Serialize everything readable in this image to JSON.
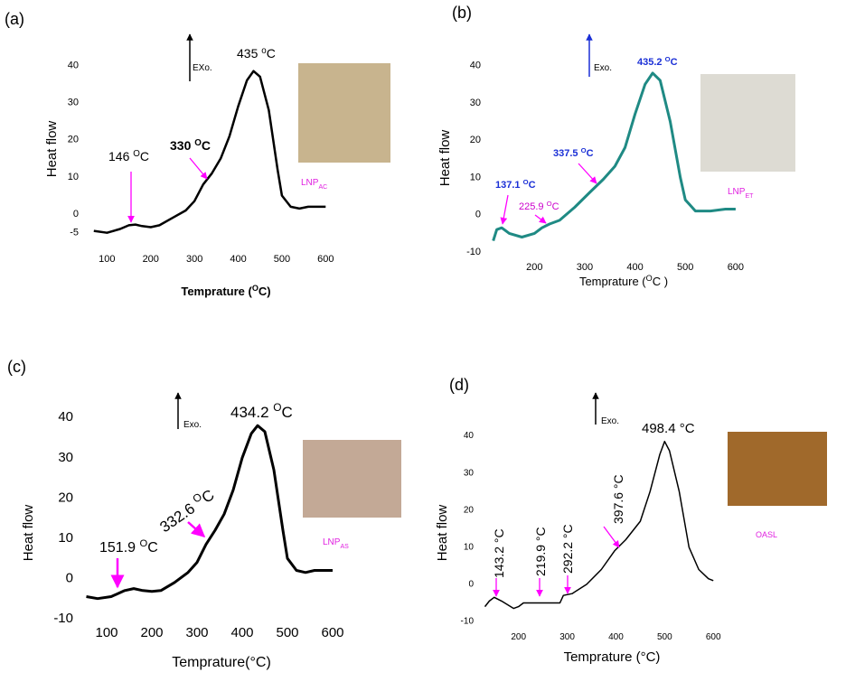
{
  "chart_data": [
    {
      "type": "line",
      "panel_label": "(a)",
      "y_label": "Heat flow",
      "x_label": {
        "text": "Temprature (",
        "sup": "O",
        "after": "C)"
      },
      "sample_label": {
        "text": "LNP",
        "sub": "AC"
      },
      "exo_label": "EXo.",
      "annotations": [
        {
          "text": "146 ",
          "sup": "O",
          "after": "C"
        },
        {
          "text": "330 ",
          "sup": "O",
          "after": "C"
        },
        {
          "text": "435 ",
          "sup": "o",
          "after": "C"
        }
      ],
      "color": "#000000",
      "x": [
        70,
        100,
        130,
        150,
        165,
        180,
        200,
        220,
        250,
        280,
        300,
        320,
        340,
        360,
        380,
        400,
        420,
        435,
        450,
        470,
        490,
        500,
        520,
        540,
        560,
        600
      ],
      "values": [
        -4.5,
        -5,
        -4,
        -3,
        -2.8,
        -3.2,
        -3.5,
        -3,
        -1,
        1,
        3.5,
        8,
        11,
        15,
        21,
        29,
        36,
        38.5,
        37,
        28,
        12,
        5,
        2,
        1.5,
        2,
        2
      ],
      "xlim": [
        60,
        620
      ],
      "ylim": [
        -8,
        45
      ],
      "xticks": [
        100,
        200,
        300,
        400,
        500,
        600
      ],
      "yticks": [
        -5,
        0,
        10,
        20,
        30,
        40
      ]
    },
    {
      "type": "line",
      "panel_label": "(b)",
      "y_label": "Heat flow",
      "x_label": {
        "text": "Temprature (",
        "sup": "O",
        "after": "C )"
      },
      "sample_label": {
        "text": "LNP",
        "sub": "ET"
      },
      "exo_label": "Exo.",
      "annotations": [
        {
          "text": "137.1 ",
          "sup": "O",
          "after": "C"
        },
        {
          "text": "225.9 ",
          "sup": "O",
          "after": "C"
        },
        {
          "text": "337.5 ",
          "sup": "O",
          "after": "C"
        },
        {
          "text": "435.2 ",
          "sup": "O",
          "after": "C"
        }
      ],
      "color": "#1f8a84",
      "x": [
        118,
        125,
        135,
        150,
        175,
        200,
        215,
        230,
        250,
        280,
        310,
        337,
        360,
        380,
        400,
        420,
        435,
        450,
        470,
        490,
        500,
        520,
        550,
        580,
        600
      ],
      "values": [
        -7,
        -4,
        -3.5,
        -5,
        -6,
        -5,
        -3.5,
        -2.5,
        -1.5,
        2,
        6,
        9.5,
        13,
        18,
        27,
        35,
        38,
        36,
        25,
        10,
        4,
        1,
        1,
        1.5,
        1.5
      ],
      "xlim": [
        115,
        620
      ],
      "ylim": [
        -10,
        45
      ],
      "xticks": [
        200,
        300,
        400,
        500,
        600
      ],
      "yticks": [
        -10,
        0,
        10,
        20,
        30,
        40
      ]
    },
    {
      "type": "line",
      "panel_label": "(c)",
      "y_label": "Heat flow",
      "x_label": {
        "text": "Temprature(°C)"
      },
      "sample_label": {
        "text": "LNP",
        "sub": "AS"
      },
      "exo_label": "Exo.",
      "annotations": [
        {
          "text": "151.9 ",
          "sup": "O",
          "after": "C"
        },
        {
          "text": "332.6 ",
          "sup": "O",
          "after": "C"
        },
        {
          "text": "434.2 ",
          "sup": "O",
          "after": "C"
        }
      ],
      "color": "#000000",
      "x": [
        55,
        80,
        110,
        140,
        160,
        180,
        200,
        220,
        250,
        280,
        300,
        320,
        340,
        360,
        380,
        400,
        420,
        434,
        450,
        470,
        490,
        500,
        520,
        540,
        560,
        600
      ],
      "values": [
        -4.5,
        -5,
        -4.5,
        -3,
        -2.5,
        -3,
        -3.2,
        -3,
        -1,
        1.5,
        4,
        8.5,
        12,
        16,
        22,
        30,
        36,
        38,
        36.5,
        27,
        12,
        5,
        2,
        1.5,
        2,
        2
      ],
      "xlim": [
        50,
        620
      ],
      "ylim": [
        -10,
        45
      ],
      "xticks": [
        100,
        200,
        300,
        400,
        500,
        600
      ],
      "yticks": [
        -10,
        0,
        10,
        20,
        30,
        40
      ]
    },
    {
      "type": "line",
      "panel_label": "(d)",
      "y_label": "Heat flow",
      "x_label": {
        "text": "Temprature (°C)"
      },
      "sample_label": {
        "text": "OASL"
      },
      "exo_label": "Exo.",
      "annotations": [
        {
          "text": "143.2 °C"
        },
        {
          "text": "219.9 °C"
        },
        {
          "text": "292.2 °C"
        },
        {
          "text": "397.6 °C"
        },
        {
          "text": "498.4 °C"
        }
      ],
      "color": "#000000",
      "x": [
        131,
        140,
        150,
        165,
        190,
        200,
        210,
        230,
        260,
        285,
        292,
        310,
        340,
        370,
        397,
        420,
        450,
        470,
        490,
        500,
        510,
        530,
        550,
        570,
        590,
        600
      ],
      "values": [
        -6,
        -4.5,
        -3.5,
        -4.5,
        -6.5,
        -6,
        -5,
        -5,
        -5,
        -5,
        -3,
        -2.5,
        0,
        4,
        9,
        12,
        17,
        25,
        35,
        38.5,
        36,
        25,
        10,
        4,
        1.5,
        1
      ],
      "xlim": [
        130,
        620
      ],
      "ylim": [
        -10,
        45
      ],
      "xticks": [
        200,
        300,
        400,
        500,
        600
      ],
      "yticks": [
        -10,
        0,
        10,
        20,
        30,
        40
      ]
    }
  ]
}
